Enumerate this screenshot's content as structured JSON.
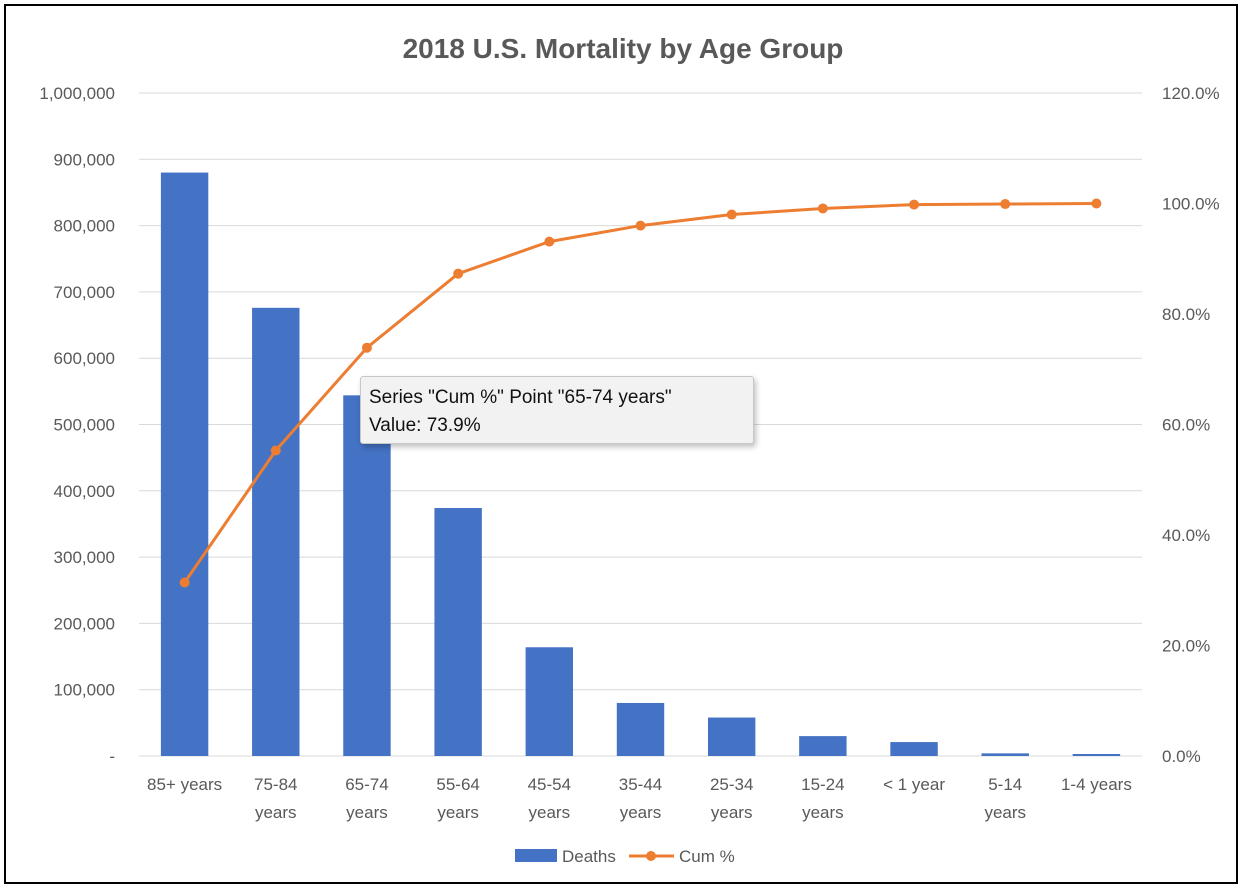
{
  "chart_data": {
    "type": "bar",
    "title": "2018 U.S. Mortality by Age Group",
    "categories": [
      [
        "85+ years"
      ],
      [
        "75-84",
        "years"
      ],
      [
        "65-74",
        "years"
      ],
      [
        "55-64",
        "years"
      ],
      [
        "45-54",
        "years"
      ],
      [
        "35-44",
        "years"
      ],
      [
        "25-34",
        "years"
      ],
      [
        "15-24",
        "years"
      ],
      [
        "< 1 year"
      ],
      [
        "5-14",
        "years"
      ],
      [
        "1-4 years"
      ]
    ],
    "ylim": [
      0,
      1000000
    ],
    "y2lim": [
      0,
      120
    ],
    "y_ticks": [
      "-",
      "100,000",
      "200,000",
      "300,000",
      "400,000",
      "500,000",
      "600,000",
      "700,000",
      "800,000",
      "900,000",
      "1,000,000"
    ],
    "y2_ticks": [
      "0.0%",
      "20.0%",
      "40.0%",
      "60.0%",
      "80.0%",
      "100.0%",
      "120.0%"
    ],
    "grid": true,
    "legend_position": "bottom",
    "series": [
      {
        "name": "Deaths",
        "type": "bar",
        "axis": "left",
        "color": "#4472c4",
        "values": [
          880000,
          676000,
          544000,
          374000,
          164000,
          80000,
          58000,
          30000,
          21000,
          4000,
          3000
        ]
      },
      {
        "name": "Cum %",
        "type": "line",
        "axis": "right",
        "color": "#ed7d31",
        "values": [
          31.4,
          55.3,
          73.9,
          87.3,
          93.1,
          96.0,
          98.0,
          99.1,
          99.8,
          99.9,
          100.0
        ]
      }
    ]
  },
  "tooltip": {
    "line1": "Series \"Cum %\" Point \"65-74 years\"",
    "line2": "Value: 73.9%"
  }
}
